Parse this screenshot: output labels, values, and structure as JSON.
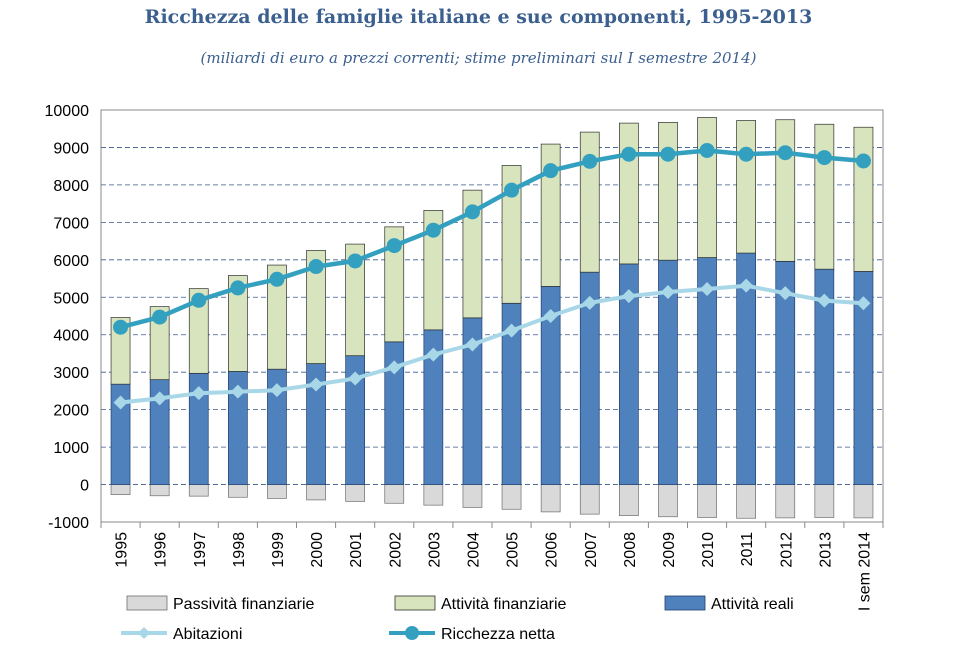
{
  "chart_data": {
    "type": "bar",
    "title": "Ricchezza delle famiglie italiane e sue componenti, 1995-2013",
    "subtitle": "(miliardi di euro a prezzi correnti; stime preliminari sul I semestre 2014)",
    "categories": [
      "1995",
      "1996",
      "1997",
      "1998",
      "1999",
      "2000",
      "2001",
      "2002",
      "2003",
      "2004",
      "2005",
      "2006",
      "2007",
      "2008",
      "2009",
      "2010",
      "2011",
      "2012",
      "2013",
      "I sem 2014"
    ],
    "ylim": [
      -1000,
      10000
    ],
    "yticks": [
      -1000,
      0,
      1000,
      2000,
      3000,
      4000,
      5000,
      6000,
      7000,
      8000,
      9000,
      10000
    ],
    "series": [
      {
        "name": "Passività finanziarie",
        "kind": "bar",
        "color": "#d9d9d9",
        "values": [
          -270,
          -300,
          -310,
          -340,
          -370,
          -410,
          -450,
          -500,
          -550,
          -610,
          -660,
          -730,
          -790,
          -830,
          -860,
          -880,
          -900,
          -890,
          -880,
          -890
        ]
      },
      {
        "name": "Attività finanziarie",
        "kind": "bar",
        "color": "#d7e4bd",
        "values": [
          1780,
          1950,
          2260,
          2560,
          2780,
          3020,
          2980,
          3070,
          3190,
          3410,
          3680,
          3800,
          3740,
          3760,
          3680,
          3740,
          3540,
          3780,
          3870,
          3850
        ]
      },
      {
        "name": "Attività reali",
        "kind": "bar",
        "color": "#4f81bd",
        "values": [
          2680,
          2800,
          2970,
          3020,
          3080,
          3230,
          3440,
          3810,
          4130,
          4450,
          4840,
          5290,
          5670,
          5890,
          5990,
          6060,
          6180,
          5960,
          5750,
          5690
        ]
      },
      {
        "name": "Abitazioni",
        "kind": "line",
        "color": "#a8d8e8",
        "values": [
          2190,
          2300,
          2440,
          2480,
          2520,
          2670,
          2830,
          3130,
          3470,
          3740,
          4110,
          4500,
          4850,
          5030,
          5140,
          5220,
          5310,
          5110,
          4910,
          4840
        ]
      },
      {
        "name": "Ricchezza netta",
        "kind": "line",
        "color": "#33a0c0",
        "values": [
          4200,
          4470,
          4920,
          5250,
          5480,
          5820,
          5970,
          6380,
          6790,
          7280,
          7860,
          8380,
          8630,
          8820,
          8820,
          8920,
          8820,
          8860,
          8730,
          8640
        ]
      }
    ],
    "legend": {
      "position": "bottom"
    }
  }
}
